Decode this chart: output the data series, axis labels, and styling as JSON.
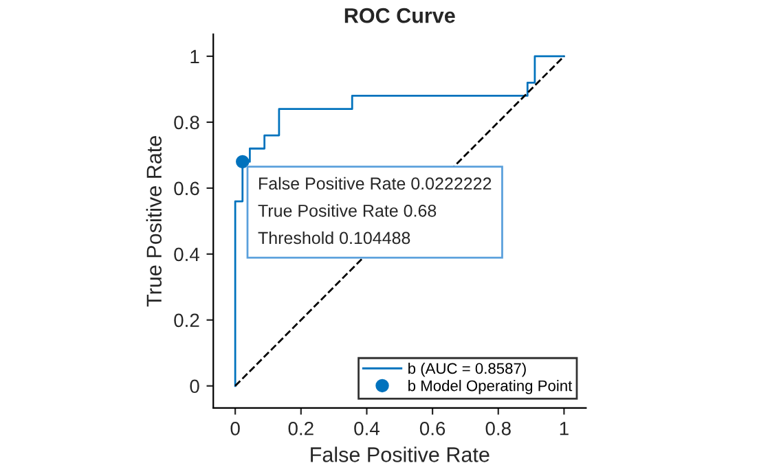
{
  "chart_data": {
    "type": "line",
    "title": "ROC Curve",
    "xlabel": "False Positive Rate",
    "ylabel": "True Positive Rate",
    "series": [
      {
        "name": "b (AUC = 0.8587)",
        "color": "#0072bd",
        "x": [
          0,
          0,
          0.0222,
          0.0222,
          0.0444,
          0.0444,
          0.0889,
          0.0889,
          0.1333,
          0.1333,
          0.3556,
          0.3556,
          0.8889,
          0.8889,
          0.9111,
          0.9111,
          1
        ],
        "values": [
          0,
          0.56,
          0.56,
          0.68,
          0.68,
          0.72,
          0.72,
          0.76,
          0.76,
          0.84,
          0.84,
          0.88,
          0.88,
          0.92,
          0.92,
          1,
          1
        ]
      },
      {
        "color": "#000000",
        "line_style": "dashed",
        "x": [
          0,
          1
        ],
        "values": [
          0,
          1
        ]
      },
      {
        "name": "b Model Operating Point",
        "color": "#0072bd",
        "type": "scatter",
        "x": [
          0.0222222
        ],
        "values": [
          0.68
        ]
      }
    ],
    "annotations": [
      {
        "text": "False Positive Rate 0.0222222\nTrue Positive Rate 0.68\nThreshold 0.104488",
        "x": 0.0222222,
        "y": 0.68
      }
    ],
    "xlim": [
      -0.0667,
      1.0667
    ],
    "ylim": [
      -0.0667,
      1.0667
    ],
    "xticks": [
      0,
      0.2,
      0.4,
      0.6,
      0.8,
      1
    ],
    "yticks": [
      0,
      0.2,
      0.4,
      0.6,
      0.8,
      1
    ],
    "grid": false,
    "legend": "bottom right"
  }
}
